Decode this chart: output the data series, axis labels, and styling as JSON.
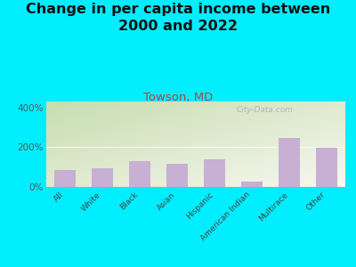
{
  "title": "Change in per capita income between\n2000 and 2022",
  "subtitle": "Towson, MD",
  "categories": [
    "All",
    "White",
    "Black",
    "Asian",
    "Hispanic",
    "American Indian",
    "Multirace",
    "Other"
  ],
  "values": [
    85,
    95,
    130,
    115,
    140,
    28,
    245,
    195
  ],
  "bar_color": "#c8afd4",
  "background_outer": "#00eeff",
  "grad_top_left": "#c8ddb0",
  "grad_bottom_right": "#f8f8f0",
  "title_fontsize": 11.5,
  "subtitle_fontsize": 9.5,
  "subtitle_color": "#b84040",
  "title_color": "#111111",
  "ylabel_ticks": [
    "0%",
    "200%",
    "400%"
  ],
  "yticks": [
    0,
    200,
    400
  ],
  "ylim": [
    0,
    430
  ],
  "watermark": "City-Data.com",
  "watermark_color": "#a0a8b0"
}
